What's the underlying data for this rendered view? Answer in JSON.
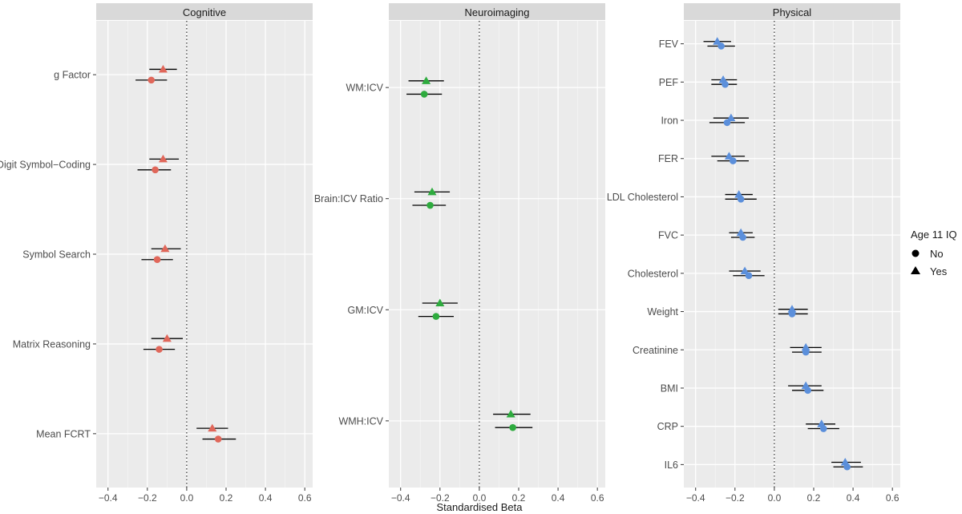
{
  "chart_data": {
    "type": "forest",
    "xlabel": "Standardised Beta",
    "xlim": [
      -0.46,
      0.64
    ],
    "xticks": [
      -0.4,
      -0.2,
      0.0,
      0.2,
      0.4,
      0.6
    ],
    "xtick_labels": [
      "−0.4",
      "−0.2",
      "0.0",
      "0.2",
      "0.4",
      "0.6"
    ],
    "reference_line": 0,
    "legend": {
      "title": "Age 11 IQ",
      "position": "right",
      "entries": [
        {
          "label": "No",
          "shape": "circle"
        },
        {
          "label": "Yes",
          "shape": "triangle"
        }
      ]
    },
    "panels": [
      {
        "title": "Cognitive",
        "color": "#E0675A",
        "rows": [
          {
            "label": "g Factor",
            "yes": {
              "est": -0.12,
              "lo": -0.19,
              "hi": -0.05
            },
            "no": {
              "est": -0.18,
              "lo": -0.26,
              "hi": -0.1
            }
          },
          {
            "label": "Digit Symbol−Coding",
            "yes": {
              "est": -0.12,
              "lo": -0.19,
              "hi": -0.04
            },
            "no": {
              "est": -0.16,
              "lo": -0.25,
              "hi": -0.08
            }
          },
          {
            "label": "Symbol Search",
            "yes": {
              "est": -0.11,
              "lo": -0.18,
              "hi": -0.03
            },
            "no": {
              "est": -0.15,
              "lo": -0.23,
              "hi": -0.07
            }
          },
          {
            "label": "Matrix Reasoning",
            "yes": {
              "est": -0.1,
              "lo": -0.18,
              "hi": -0.02
            },
            "no": {
              "est": -0.14,
              "lo": -0.22,
              "hi": -0.06
            }
          },
          {
            "label": "Mean FCRT",
            "yes": {
              "est": 0.13,
              "lo": 0.05,
              "hi": 0.21
            },
            "no": {
              "est": 0.16,
              "lo": 0.08,
              "hi": 0.25
            }
          }
        ]
      },
      {
        "title": "Neuroimaging",
        "color": "#2EAB3E",
        "rows": [
          {
            "label": "WM:ICV",
            "yes": {
              "est": -0.27,
              "lo": -0.36,
              "hi": -0.18
            },
            "no": {
              "est": -0.28,
              "lo": -0.37,
              "hi": -0.19
            }
          },
          {
            "label": "Brain:ICV Ratio",
            "yes": {
              "est": -0.24,
              "lo": -0.33,
              "hi": -0.15
            },
            "no": {
              "est": -0.25,
              "lo": -0.34,
              "hi": -0.17
            }
          },
          {
            "label": "GM:ICV",
            "yes": {
              "est": -0.2,
              "lo": -0.29,
              "hi": -0.11
            },
            "no": {
              "est": -0.22,
              "lo": -0.31,
              "hi": -0.13
            }
          },
          {
            "label": "WMH:ICV",
            "yes": {
              "est": 0.16,
              "lo": 0.07,
              "hi": 0.26
            },
            "no": {
              "est": 0.17,
              "lo": 0.08,
              "hi": 0.27
            }
          }
        ]
      },
      {
        "title": "Physical",
        "color": "#5B8FDB",
        "rows": [
          {
            "label": "FEV",
            "yes": {
              "est": -0.29,
              "lo": -0.36,
              "hi": -0.22
            },
            "no": {
              "est": -0.27,
              "lo": -0.34,
              "hi": -0.2
            }
          },
          {
            "label": "PEF",
            "yes": {
              "est": -0.26,
              "lo": -0.32,
              "hi": -0.19
            },
            "no": {
              "est": -0.25,
              "lo": -0.32,
              "hi": -0.19
            }
          },
          {
            "label": "Iron",
            "yes": {
              "est": -0.22,
              "lo": -0.31,
              "hi": -0.13
            },
            "no": {
              "est": -0.24,
              "lo": -0.33,
              "hi": -0.15
            }
          },
          {
            "label": "FER",
            "yes": {
              "est": -0.23,
              "lo": -0.32,
              "hi": -0.15
            },
            "no": {
              "est": -0.21,
              "lo": -0.29,
              "hi": -0.13
            }
          },
          {
            "label": "LDL Cholesterol",
            "yes": {
              "est": -0.18,
              "lo": -0.25,
              "hi": -0.11
            },
            "no": {
              "est": -0.17,
              "lo": -0.25,
              "hi": -0.09
            }
          },
          {
            "label": "FVC",
            "yes": {
              "est": -0.17,
              "lo": -0.23,
              "hi": -0.11
            },
            "no": {
              "est": -0.16,
              "lo": -0.22,
              "hi": -0.1
            }
          },
          {
            "label": "Cholesterol",
            "yes": {
              "est": -0.15,
              "lo": -0.23,
              "hi": -0.07
            },
            "no": {
              "est": -0.13,
              "lo": -0.21,
              "hi": -0.05
            }
          },
          {
            "label": "Weight",
            "yes": {
              "est": 0.09,
              "lo": 0.02,
              "hi": 0.17
            },
            "no": {
              "est": 0.09,
              "lo": 0.02,
              "hi": 0.17
            }
          },
          {
            "label": "Creatinine",
            "yes": {
              "est": 0.16,
              "lo": 0.08,
              "hi": 0.24
            },
            "no": {
              "est": 0.16,
              "lo": 0.09,
              "hi": 0.24
            }
          },
          {
            "label": "BMI",
            "yes": {
              "est": 0.16,
              "lo": 0.07,
              "hi": 0.24
            },
            "no": {
              "est": 0.17,
              "lo": 0.09,
              "hi": 0.25
            }
          },
          {
            "label": "CRP",
            "yes": {
              "est": 0.24,
              "lo": 0.16,
              "hi": 0.31
            },
            "no": {
              "est": 0.25,
              "lo": 0.17,
              "hi": 0.33
            }
          },
          {
            "label": "IL6",
            "yes": {
              "est": 0.36,
              "lo": 0.29,
              "hi": 0.44
            },
            "no": {
              "est": 0.37,
              "lo": 0.3,
              "hi": 0.45
            }
          }
        ]
      }
    ]
  }
}
